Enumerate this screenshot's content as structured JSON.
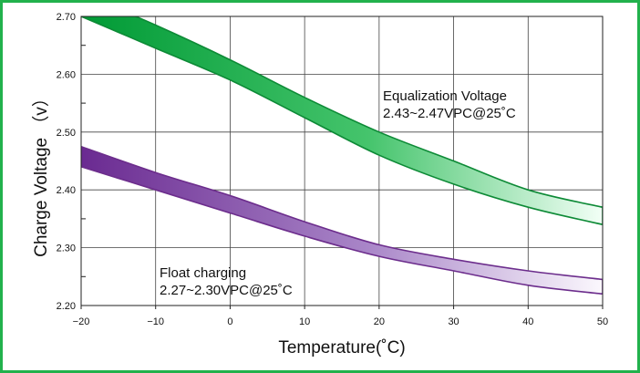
{
  "chart_data": {
    "type": "area",
    "xlabel": "Temperature(˚C)",
    "ylabel": "Charge Voltage （v）",
    "xlim": [
      -20,
      50
    ],
    "ylim": [
      2.2,
      2.7
    ],
    "grid": true,
    "x_ticks": [
      "−20",
      "−10",
      "0",
      "10",
      "20",
      "30",
      "40",
      "50"
    ],
    "y_ticks": [
      "2.70",
      "2.60",
      "2.50",
      "2.40",
      "2.30",
      "2.20"
    ],
    "series": [
      {
        "name": "Equalization Voltage",
        "color": "#22b14c",
        "x": [
          -20,
          -10,
          0,
          10,
          20,
          30,
          40,
          50
        ],
        "lower": [
          2.7,
          2.645,
          2.59,
          2.525,
          2.46,
          2.41,
          2.37,
          2.34
        ],
        "upper": [
          2.74,
          2.685,
          2.625,
          2.56,
          2.5,
          2.45,
          2.4,
          2.37
        ]
      },
      {
        "name": "Float charging",
        "color": "#7d3c98",
        "x": [
          -20,
          -10,
          0,
          10,
          20,
          30,
          40,
          50
        ],
        "lower": [
          2.44,
          2.4,
          2.36,
          2.32,
          2.285,
          2.26,
          2.235,
          2.22
        ],
        "upper": [
          2.475,
          2.43,
          2.39,
          2.345,
          2.305,
          2.28,
          2.26,
          2.245
        ]
      }
    ],
    "annotations": [
      {
        "series": 0,
        "lines": [
          "Equalization Voltage",
          "2.43~2.47VPC@25˚C"
        ]
      },
      {
        "series": 1,
        "lines": [
          "Float charging",
          "2.27~2.30VPC@25˚C"
        ]
      }
    ]
  }
}
